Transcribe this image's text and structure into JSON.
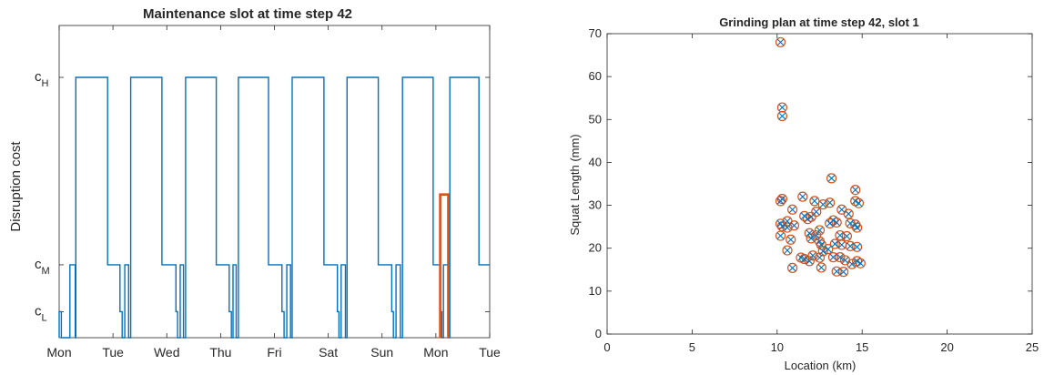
{
  "chart_data": [
    {
      "type": "line",
      "title": "Maintenance slot at time step 42",
      "xlabel": "",
      "ylabel": "Disruption cost",
      "x_ticks": [
        "Mon",
        "Tue",
        "Wed",
        "Thu",
        "Fri",
        "Sat",
        "Sun",
        "Mon",
        "Tue"
      ],
      "y_ticks": [
        {
          "base": "c",
          "sub": "L"
        },
        {
          "base": "c",
          "sub": "M"
        },
        {
          "base": "c",
          "sub": "H"
        }
      ],
      "xlim": [
        0,
        8
      ],
      "ylim": [
        0,
        1
      ],
      "series": [
        {
          "color": "#0072BD",
          "points": [
            [
              0.0,
              0.0
            ],
            [
              0.0,
              0.1
            ],
            [
              0.04,
              0.1
            ],
            [
              0.04,
              0.0
            ],
            [
              0.2,
              0.0
            ],
            [
              0.2,
              0.28
            ],
            [
              0.3,
              0.28
            ],
            [
              0.3,
              0.0
            ],
            [
              0.31,
              0.0
            ],
            [
              0.31,
              1.0
            ],
            [
              0.9,
              1.0
            ],
            [
              0.9,
              0.28
            ],
            [
              1.13,
              0.28
            ],
            [
              1.13,
              0.1
            ],
            [
              1.17,
              0.1
            ],
            [
              1.17,
              0.0
            ],
            [
              1.22,
              0.0
            ],
            [
              1.22,
              0.28
            ],
            [
              1.29,
              0.28
            ],
            [
              1.29,
              0.0
            ],
            [
              1.33,
              0.0
            ],
            [
              1.33,
              1.0
            ],
            [
              1.91,
              1.0
            ],
            [
              1.91,
              0.28
            ],
            [
              2.17,
              0.28
            ],
            [
              2.17,
              0.1
            ],
            [
              2.2,
              0.1
            ],
            [
              2.2,
              0.0
            ],
            [
              2.25,
              0.0
            ],
            [
              2.25,
              0.28
            ],
            [
              2.31,
              0.28
            ],
            [
              2.31,
              0.0
            ],
            [
              2.35,
              0.0
            ],
            [
              2.35,
              1.0
            ],
            [
              2.92,
              1.0
            ],
            [
              2.92,
              0.28
            ],
            [
              3.16,
              0.28
            ],
            [
              3.16,
              0.1
            ],
            [
              3.2,
              0.1
            ],
            [
              3.2,
              0.0
            ],
            [
              3.23,
              0.0
            ],
            [
              3.23,
              0.28
            ],
            [
              3.29,
              0.28
            ],
            [
              3.29,
              0.0
            ],
            [
              3.33,
              0.0
            ],
            [
              3.33,
              1.0
            ],
            [
              3.89,
              1.0
            ],
            [
              3.89,
              0.28
            ],
            [
              4.14,
              0.28
            ],
            [
              4.14,
              0.1
            ],
            [
              4.18,
              0.1
            ],
            [
              4.18,
              0.0
            ],
            [
              4.23,
              0.0
            ],
            [
              4.23,
              0.28
            ],
            [
              4.3,
              0.28
            ],
            [
              4.3,
              0.0
            ],
            [
              4.33,
              0.0
            ],
            [
              4.33,
              1.0
            ],
            [
              4.92,
              1.0
            ],
            [
              4.92,
              0.28
            ],
            [
              5.17,
              0.28
            ],
            [
              5.17,
              0.1
            ],
            [
              5.2,
              0.1
            ],
            [
              5.2,
              0.0
            ],
            [
              5.24,
              0.0
            ],
            [
              5.24,
              0.28
            ],
            [
              5.32,
              0.28
            ],
            [
              5.32,
              0.0
            ],
            [
              5.35,
              0.0
            ],
            [
              5.35,
              1.0
            ],
            [
              5.93,
              1.0
            ],
            [
              5.93,
              0.28
            ],
            [
              6.18,
              0.28
            ],
            [
              6.18,
              0.1
            ],
            [
              6.21,
              0.1
            ],
            [
              6.21,
              0.0
            ],
            [
              6.26,
              0.0
            ],
            [
              6.26,
              0.28
            ],
            [
              6.34,
              0.28
            ],
            [
              6.34,
              0.0
            ],
            [
              6.38,
              0.0
            ],
            [
              6.38,
              1.0
            ],
            [
              6.95,
              1.0
            ],
            [
              6.95,
              0.28
            ],
            [
              7.08,
              0.28
            ],
            [
              7.08,
              0.1
            ],
            [
              7.11,
              0.1
            ],
            [
              7.11,
              0.0
            ],
            [
              7.14,
              0.0
            ],
            [
              7.14,
              0.28
            ],
            [
              7.23,
              0.28
            ],
            [
              7.23,
              0.0
            ],
            [
              7.26,
              0.0
            ],
            [
              7.26,
              1.0
            ],
            [
              7.8,
              1.0
            ],
            [
              7.8,
              0.28
            ],
            [
              8.0,
              0.28
            ]
          ]
        },
        {
          "color": "#D95319",
          "points": [
            [
              7.08,
              0.0
            ],
            [
              7.08,
              0.55
            ],
            [
              7.23,
              0.55
            ],
            [
              7.23,
              0.0
            ]
          ]
        }
      ]
    },
    {
      "type": "scatter",
      "title": "Grinding plan at time step 42, slot 1",
      "xlabel": "Location (km)",
      "ylabel": "Squat Length (mm)",
      "xlim": [
        0,
        25
      ],
      "ylim": [
        0,
        70
      ],
      "x_ticks": [
        0,
        5,
        10,
        15,
        20,
        25
      ],
      "y_ticks": [
        0,
        10,
        20,
        30,
        40,
        50,
        60,
        70
      ],
      "grid": false,
      "series": [
        {
          "marker": "x",
          "color": "#0072BD",
          "points": [
            [
              10.2,
              68.0
            ],
            [
              10.3,
              52.8
            ],
            [
              10.3,
              50.8
            ],
            [
              13.2,
              36.3
            ],
            [
              14.6,
              33.6
            ],
            [
              10.3,
              31.5
            ],
            [
              10.2,
              31.0
            ],
            [
              11.5,
              32.0
            ],
            [
              14.6,
              31.0
            ],
            [
              14.8,
              30.5
            ],
            [
              12.2,
              31.0
            ],
            [
              12.7,
              30.2
            ],
            [
              13.1,
              30.6
            ],
            [
              10.9,
              29.0
            ],
            [
              12.3,
              28.5
            ],
            [
              13.8,
              29.0
            ],
            [
              14.2,
              28.0
            ],
            [
              11.6,
              27.5
            ],
            [
              11.8,
              26.8
            ],
            [
              12.0,
              27.3
            ],
            [
              13.3,
              26.5
            ],
            [
              10.6,
              26.3
            ],
            [
              10.2,
              25.7
            ],
            [
              10.3,
              25.1
            ],
            [
              10.6,
              24.8
            ],
            [
              11.0,
              25.3
            ],
            [
              13.1,
              25.8
            ],
            [
              13.5,
              26.0
            ],
            [
              14.3,
              25.8
            ],
            [
              14.6,
              25.5
            ],
            [
              14.7,
              24.8
            ],
            [
              12.5,
              24.2
            ],
            [
              11.9,
              23.5
            ],
            [
              12.3,
              23.0
            ],
            [
              12.0,
              22.3
            ],
            [
              10.2,
              22.9
            ],
            [
              10.8,
              22.0
            ],
            [
              13.7,
              23.0
            ],
            [
              14.1,
              22.8
            ],
            [
              12.5,
              21.6
            ],
            [
              12.6,
              20.8
            ],
            [
              13.4,
              21.0
            ],
            [
              13.8,
              20.8
            ],
            [
              14.3,
              20.5
            ],
            [
              14.7,
              20.3
            ],
            [
              13.0,
              19.8
            ],
            [
              12.7,
              19.3
            ],
            [
              10.6,
              19.5
            ],
            [
              13.3,
              17.9
            ],
            [
              13.7,
              17.9
            ],
            [
              14.0,
              17.2
            ],
            [
              12.1,
              18.3
            ],
            [
              12.5,
              17.8
            ],
            [
              11.6,
              17.5
            ],
            [
              11.9,
              17.0
            ],
            [
              11.4,
              17.8
            ],
            [
              14.7,
              17.0
            ],
            [
              14.9,
              16.5
            ],
            [
              14.4,
              16.3
            ],
            [
              13.5,
              14.6
            ],
            [
              13.9,
              14.5
            ],
            [
              10.9,
              15.4
            ],
            [
              12.6,
              15.5
            ]
          ]
        },
        {
          "marker": "o",
          "color": "#D95319",
          "points": [
            [
              10.2,
              68.0
            ],
            [
              10.3,
              52.8
            ],
            [
              10.3,
              50.8
            ],
            [
              13.2,
              36.3
            ],
            [
              14.6,
              33.6
            ],
            [
              10.3,
              31.5
            ],
            [
              10.2,
              31.0
            ],
            [
              11.5,
              32.0
            ],
            [
              14.6,
              31.0
            ],
            [
              14.8,
              30.5
            ],
            [
              12.2,
              31.0
            ],
            [
              12.7,
              30.2
            ],
            [
              13.1,
              30.6
            ],
            [
              10.9,
              29.0
            ],
            [
              12.3,
              28.5
            ],
            [
              13.8,
              29.0
            ],
            [
              14.2,
              28.0
            ],
            [
              11.6,
              27.5
            ],
            [
              11.8,
              26.8
            ],
            [
              12.0,
              27.3
            ],
            [
              13.3,
              26.5
            ],
            [
              10.6,
              26.3
            ],
            [
              10.2,
              25.7
            ],
            [
              10.3,
              25.1
            ],
            [
              10.6,
              24.8
            ],
            [
              11.0,
              25.3
            ],
            [
              13.1,
              25.8
            ],
            [
              13.5,
              26.0
            ],
            [
              14.3,
              25.8
            ],
            [
              14.6,
              25.5
            ],
            [
              14.7,
              24.8
            ],
            [
              12.5,
              24.2
            ],
            [
              11.9,
              23.5
            ],
            [
              12.3,
              23.0
            ],
            [
              12.0,
              22.3
            ],
            [
              10.2,
              22.9
            ],
            [
              10.8,
              22.0
            ],
            [
              13.7,
              23.0
            ],
            [
              14.1,
              22.8
            ],
            [
              12.5,
              21.6
            ],
            [
              12.6,
              20.8
            ],
            [
              13.4,
              21.0
            ],
            [
              13.8,
              20.8
            ],
            [
              14.3,
              20.5
            ],
            [
              14.7,
              20.3
            ],
            [
              13.0,
              19.8
            ],
            [
              12.7,
              19.3
            ],
            [
              10.6,
              19.5
            ],
            [
              13.3,
              17.9
            ],
            [
              13.7,
              17.9
            ],
            [
              14.0,
              17.2
            ],
            [
              12.1,
              18.3
            ],
            [
              12.5,
              17.8
            ],
            [
              11.6,
              17.5
            ],
            [
              11.9,
              17.0
            ],
            [
              11.4,
              17.8
            ],
            [
              14.7,
              17.0
            ],
            [
              14.9,
              16.5
            ],
            [
              14.4,
              16.3
            ],
            [
              13.5,
              14.6
            ],
            [
              13.9,
              14.5
            ],
            [
              10.9,
              15.4
            ],
            [
              12.6,
              15.5
            ]
          ]
        }
      ]
    }
  ]
}
